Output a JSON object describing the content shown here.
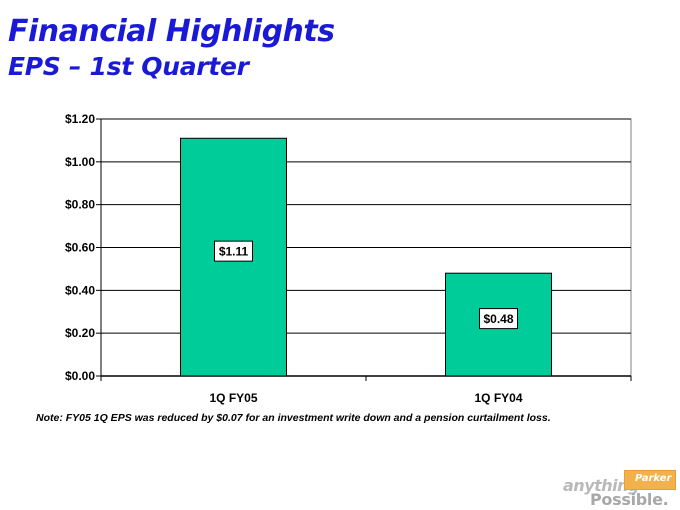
{
  "slide": {
    "title": "Financial Highlights",
    "subtitle": "EPS – 1st Quarter",
    "note": "Note:  FY05 1Q EPS was reduced by $0.07 for an investment write down and a pension curtailment loss."
  },
  "logo": {
    "tagline_top": "anything",
    "tagline_bottom": "Possible.",
    "brand": "Parker"
  },
  "colors": {
    "title": "#1a1ad6",
    "bar": "#00cc99",
    "bar_outline": "#000000",
    "gridline": "#000000"
  },
  "chart_data": {
    "type": "bar",
    "title": "",
    "xlabel": "",
    "ylabel": "",
    "categories": [
      "1Q FY05",
      "1Q FY04"
    ],
    "values": [
      1.11,
      0.48
    ],
    "data_labels": [
      "$1.11",
      "$0.48"
    ],
    "ylim": [
      0,
      1.2
    ],
    "yticks": [
      0,
      0.2,
      0.4,
      0.6,
      0.8,
      1.0,
      1.2
    ],
    "ytick_labels": [
      "$0.00",
      "$0.20",
      "$0.40",
      "$0.60",
      "$0.80",
      "$1.00",
      "$1.20"
    ],
    "grid": true,
    "legend": "none"
  }
}
